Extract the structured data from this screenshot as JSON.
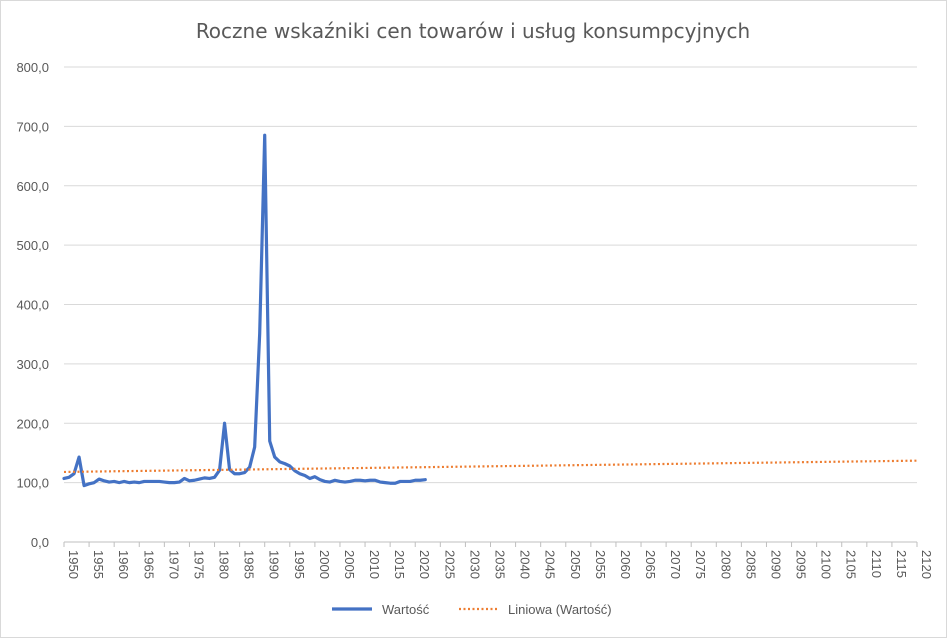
{
  "chart_data": {
    "type": "line",
    "title": "Roczne wskaźniki cen towarów i usług konsumpcyjnych",
    "xlabel": "",
    "ylabel": "",
    "xlim": [
      1950,
      2120
    ],
    "ylim": [
      0,
      800
    ],
    "x_ticks": [
      "1950",
      "1955",
      "1960",
      "1965",
      "1970",
      "1975",
      "1980",
      "1985",
      "1990",
      "1995",
      "2000",
      "2005",
      "2010",
      "2015",
      "2020",
      "2025",
      "2030",
      "2035",
      "2040",
      "2045",
      "2050",
      "2055",
      "2060",
      "2065",
      "2070",
      "2075",
      "2080",
      "2085",
      "2090",
      "2095",
      "2100",
      "2105",
      "2110",
      "2115",
      "2120"
    ],
    "y_ticks": [
      "0,0",
      "100,0",
      "200,0",
      "300,0",
      "400,0",
      "500,0",
      "600,0",
      "700,0",
      "800,0"
    ],
    "y_tick_values": [
      0,
      100,
      200,
      300,
      400,
      500,
      600,
      700,
      800
    ],
    "grid": "horizontal",
    "legend_position": "bottom",
    "series": [
      {
        "name": "Wartość",
        "color": "#4472c4",
        "style": "solid",
        "x": [
          1950,
          1951,
          1952,
          1953,
          1954,
          1955,
          1956,
          1957,
          1958,
          1959,
          1960,
          1961,
          1962,
          1963,
          1964,
          1965,
          1966,
          1967,
          1968,
          1969,
          1970,
          1971,
          1972,
          1973,
          1974,
          1975,
          1976,
          1977,
          1978,
          1979,
          1980,
          1981,
          1982,
          1983,
          1984,
          1985,
          1986,
          1987,
          1988,
          1989,
          1990,
          1991,
          1992,
          1993,
          1994,
          1995,
          1996,
          1997,
          1998,
          1999,
          2000,
          2001,
          2002,
          2003,
          2004,
          2005,
          2006,
          2007,
          2008,
          2009,
          2010,
          2011,
          2012,
          2013,
          2014,
          2015,
          2016,
          2017,
          2018,
          2019,
          2020,
          2021,
          2022
        ],
        "values": [
          107,
          109,
          115,
          143,
          95,
          98,
          100,
          106,
          103,
          101,
          102,
          100,
          102,
          100,
          101,
          100,
          102,
          102,
          102,
          102,
          101,
          100,
          100,
          101,
          107,
          103,
          104,
          106,
          108,
          107,
          109,
          121,
          200,
          122,
          115,
          115,
          117,
          126,
          160,
          351,
          685,
          170,
          143,
          135,
          132,
          128,
          120,
          115,
          112,
          107,
          110,
          105,
          102,
          101,
          104,
          102,
          101,
          102,
          104,
          104,
          103,
          104,
          104,
          101,
          100,
          99,
          99,
          102,
          102,
          102,
          104,
          104,
          105
        ]
      },
      {
        "name": "Liniowa (Wartość)",
        "color": "#ed7d31",
        "style": "dotted",
        "x": [
          1950,
          2120
        ],
        "values": [
          118,
          137
        ]
      }
    ]
  }
}
